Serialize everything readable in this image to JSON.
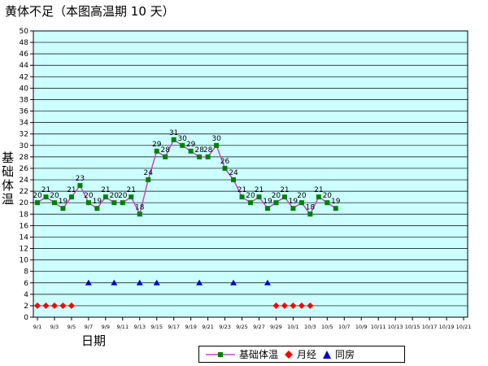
{
  "title": "黄体不足（本图高温期 10 天）",
  "chart_data": {
    "type": "line",
    "title": "黄体不足（本图高温期 10 天）",
    "ylabel": "基础体温",
    "xlabel": "日期",
    "ylim": [
      0,
      50
    ],
    "ytick_step": 2,
    "grid": true,
    "legend_position": "bottom",
    "x_ticks": [
      "9/1",
      "9/3",
      "9/5",
      "9/7",
      "9/9",
      "9/11",
      "9/13",
      "9/15",
      "9/17",
      "9/19",
      "9/21",
      "9/23",
      "9/25",
      "9/27",
      "9/29",
      "10/1",
      "10/3",
      "10/5",
      "10/7",
      "10/9",
      "10/11",
      "10/13",
      "10/15",
      "10/17",
      "10/19",
      "10/21"
    ],
    "days_per_tick": 2,
    "series": [
      {
        "name": "基础体温",
        "color": "#cc44cc",
        "marker_color": "#008000",
        "marker": "square",
        "values": [
          20,
          21,
          20,
          19,
          21,
          23,
          20,
          19,
          21,
          20,
          20,
          21,
          18,
          24,
          29,
          28,
          31,
          30,
          29,
          28,
          28,
          30,
          26,
          24,
          21,
          20,
          21,
          19,
          20,
          21,
          19,
          20,
          18,
          21,
          20,
          19
        ]
      },
      {
        "name": "月经",
        "color": "#ff0000",
        "marker": "diamond",
        "points": [
          [
            "9/1",
            2
          ],
          [
            "9/2",
            2
          ],
          [
            "9/3",
            2
          ],
          [
            "9/4",
            2
          ],
          [
            "9/5",
            2
          ],
          [
            "9/29",
            2
          ],
          [
            "9/30",
            2
          ],
          [
            "10/1",
            2
          ],
          [
            "10/2",
            2
          ],
          [
            "10/3",
            2
          ]
        ]
      },
      {
        "name": "同房",
        "color": "#0000cc",
        "marker": "triangle",
        "points": [
          [
            "9/7",
            6
          ],
          [
            "9/10",
            6
          ],
          [
            "9/13",
            6
          ],
          [
            "9/15",
            6
          ],
          [
            "9/20",
            6
          ],
          [
            "9/24",
            6
          ],
          [
            "9/28",
            6
          ]
        ]
      }
    ]
  }
}
